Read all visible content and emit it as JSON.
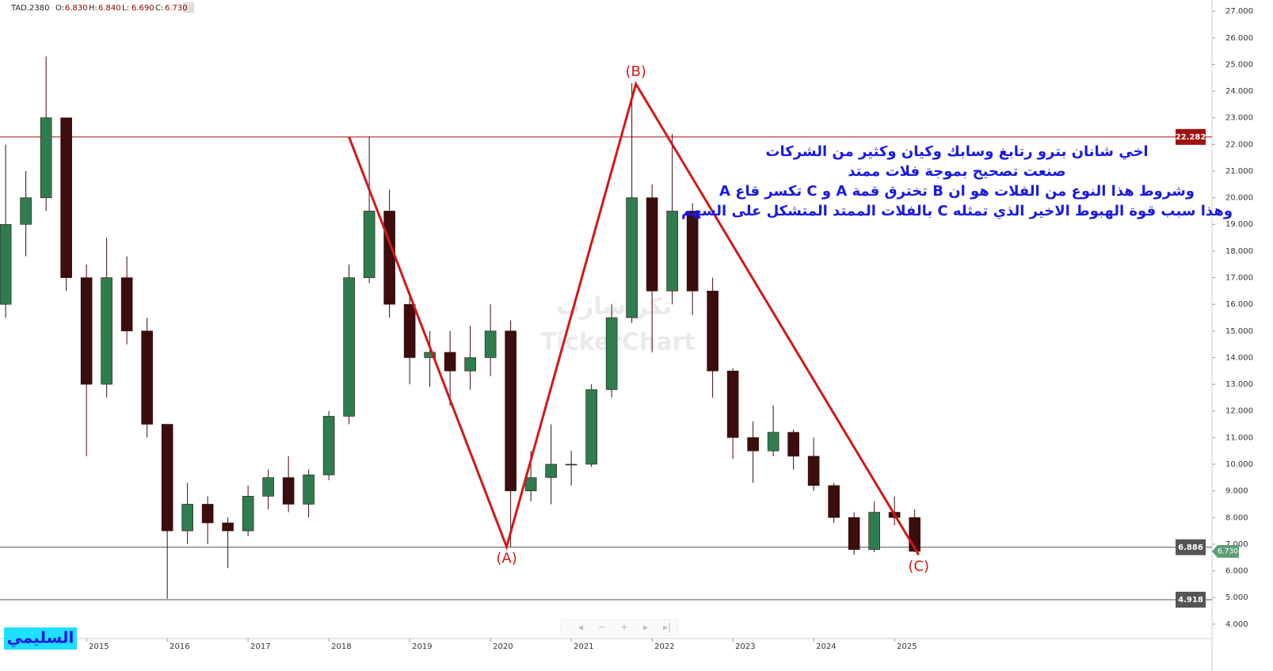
{
  "chart_data": {
    "type": "candlestick",
    "symbol": "TAD.2380",
    "header": [
      {
        "key": "O:",
        "value": 6.83,
        "label": "6.830"
      },
      {
        "key": "H:",
        "value": 6.84,
        "label": "6.840"
      },
      {
        "key": "L:",
        "value": 6.69,
        "label": "6.690"
      },
      {
        "key": "C:",
        "value": 6.73,
        "label": "6.730"
      }
    ],
    "x": [
      2014.0,
      2014.25,
      2014.5,
      2014.75,
      2015.0,
      2015.25,
      2015.5,
      2015.75,
      2016.0,
      2016.25,
      2016.5,
      2016.75,
      2017.0,
      2017.25,
      2017.5,
      2017.75,
      2018.0,
      2018.25,
      2018.5,
      2018.75,
      2019.0,
      2019.25,
      2019.5,
      2019.75,
      2020.0,
      2020.25,
      2020.5,
      2020.75,
      2021.0,
      2021.25,
      2021.5,
      2021.75,
      2022.0,
      2022.25,
      2022.5,
      2022.75,
      2023.0,
      2023.25,
      2023.5,
      2023.75,
      2024.0,
      2024.25,
      2024.5,
      2024.75,
      2025.0,
      2025.25
    ],
    "open": [
      16,
      19,
      20,
      23,
      17,
      13,
      17,
      15,
      11.5,
      7.5,
      8.5,
      7.8,
      7.5,
      8.8,
      9.5,
      8.5,
      9.6,
      11.8,
      17,
      19.5,
      16,
      14,
      14.2,
      13.5,
      14,
      15,
      9,
      9.5,
      10,
      10,
      12.8,
      15.5,
      20,
      16.5,
      19.5,
      16.5,
      13.5,
      11,
      10.5,
      11.2,
      10.3,
      9.2,
      8,
      6.8,
      8.2,
      8
    ],
    "high": [
      22,
      21,
      25.3,
      23,
      17.5,
      18.5,
      17.8,
      15.5,
      11.5,
      9.3,
      8.8,
      8,
      9.2,
      9.8,
      10.3,
      9.8,
      12,
      17.5,
      22.3,
      20.3,
      16.5,
      15,
      15,
      15.2,
      16,
      15.4,
      10.5,
      11.5,
      10.5,
      13,
      16,
      24.3,
      20.5,
      22.4,
      19.8,
      17,
      13.6,
      11.6,
      12.2,
      11.3,
      11,
      9.3,
      8.2,
      8.6,
      8.8,
      8.3
    ],
    "low": [
      15.5,
      17.8,
      19.5,
      16.5,
      10.3,
      12.5,
      14.5,
      11,
      4.95,
      7,
      7,
      6.1,
      7.3,
      8.3,
      8.2,
      8,
      9.4,
      11.5,
      16.8,
      15.5,
      13,
      12.9,
      12.2,
      12.8,
      13.3,
      6.9,
      8.6,
      8.5,
      9.2,
      9.9,
      12.5,
      15.3,
      14.2,
      16,
      15.6,
      12.5,
      10.2,
      9.3,
      10.3,
      9.8,
      9,
      7.8,
      6.6,
      6.7,
      7.7,
      6.7
    ],
    "close": [
      19,
      20,
      23,
      17,
      13,
      17,
      15,
      11.5,
      7.5,
      8.5,
      7.8,
      7.5,
      8.8,
      9.5,
      8.5,
      9.6,
      11.8,
      17,
      19.5,
      16,
      14,
      14.2,
      13.5,
      14,
      15,
      9,
      9.5,
      10,
      10,
      12.8,
      15.5,
      20,
      16.5,
      19.5,
      16.5,
      13.5,
      11,
      10.5,
      11.2,
      10.3,
      9.2,
      8,
      6.8,
      8.2,
      8,
      6.73
    ],
    "up_color": "#2e7d4f",
    "down_color": "#3b0d0d",
    "xlim": [
      2013.93,
      2028.93
    ],
    "xticks": [
      2015,
      2016,
      2017,
      2018,
      2019,
      2020,
      2021,
      2022,
      2023,
      2024,
      2025
    ],
    "ylim": [
      3.46,
      27.42
    ],
    "yticks": [
      {
        "value": 4,
        "label": "4.000"
      },
      {
        "value": 5,
        "label": "5.000"
      },
      {
        "value": 6,
        "label": "6.000"
      },
      {
        "value": 7,
        "label": "7.000"
      },
      {
        "value": 8,
        "label": "8.000"
      },
      {
        "value": 9,
        "label": "9.000"
      },
      {
        "value": 10,
        "label": "10.000"
      },
      {
        "value": 11,
        "label": "11.000"
      },
      {
        "value": 12,
        "label": "12.000"
      },
      {
        "value": 13,
        "label": "13.000"
      },
      {
        "value": 14,
        "label": "14.000"
      },
      {
        "value": 15,
        "label": "15.000"
      },
      {
        "value": 16,
        "label": "16.000"
      },
      {
        "value": 17,
        "label": "17.000"
      },
      {
        "value": 18,
        "label": "18.000"
      },
      {
        "value": 19,
        "label": "19.000"
      },
      {
        "value": 20,
        "label": "20.000"
      },
      {
        "value": 21,
        "label": "21.000"
      },
      {
        "value": 22,
        "label": "22.000"
      },
      {
        "value": 23,
        "label": "23.000"
      },
      {
        "value": 24,
        "label": "24.000"
      },
      {
        "value": 25,
        "label": "25.000"
      },
      {
        "value": 26,
        "label": "26.000"
      },
      {
        "value": 27,
        "label": "27.000"
      }
    ],
    "levels": [
      {
        "value": 22.282,
        "color": "#a01010"
      },
      {
        "value": 6.886,
        "color": "#555555"
      },
      {
        "value": 4.918,
        "color": "#555555"
      }
    ],
    "last_price": {
      "value": 6.73,
      "label": "6.730",
      "color": "#5f9f74"
    },
    "wave": {
      "x": [
        2018.25,
        2020.2,
        2021.8,
        2025.3
      ],
      "y": [
        22.28,
        6.9,
        24.27,
        6.6
      ],
      "color": "#d01818",
      "labels": [
        null,
        "(A)",
        "(B)",
        "(C)"
      ]
    },
    "annotation": [
      "اخي شانان بترو رتابغ وسابك وكيان وكثير من الشركات",
      "صنعت تصحيح بموجة فلات ممتد",
      "وشروط هذا النوع من الفلات هو ان B تخترق قمة A و C تكسر قاع A",
      "وهذا سبب قوة الهبوط الاخير الذي تمثله C بالفلات الممتد المتشكل على السهم"
    ],
    "annotation_color": "#1a1ae0",
    "watermark": [
      "تكر شارت",
      "TickerChart"
    ],
    "author": "السليمي"
  }
}
